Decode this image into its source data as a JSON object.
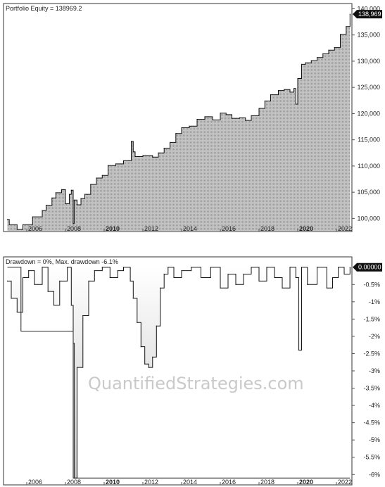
{
  "watermark": "QuantifiedStrategies.com",
  "colors": {
    "area_fill": "#b4b4b4",
    "line": "#111111",
    "badge_bg": "#111111",
    "badge_text": "#ffffff",
    "drawdown_gradient_top": "#ffffff",
    "drawdown_gradient_bottom": "#c8c8c8"
  },
  "chart_data": [
    {
      "type": "area",
      "title": "Portfolio Equity = 138969.2",
      "badge_value": "138,969",
      "xlim": [
        2004.8,
        2022.8
      ],
      "ylim": [
        97500,
        141000
      ],
      "x_ticks": [
        "2006",
        "2008",
        "2010",
        "2012",
        "2014",
        "2016",
        "2018",
        "2020",
        "2022"
      ],
      "x_ticks_bold": [
        "2010",
        "2020"
      ],
      "y_ticks": [
        "100,000",
        "105,000",
        "110,000",
        "115,000",
        "120,000",
        "125,000",
        "130,000",
        "135,000",
        "140,000"
      ],
      "grid": false,
      "series": [
        {
          "x": [
            2005.0,
            2005.1,
            2005.5,
            2005.8,
            2006.3,
            2006.8,
            2007.0,
            2007.3,
            2007.5,
            2007.8,
            2008.0,
            2008.2,
            2008.3,
            2008.4,
            2008.45,
            2008.6,
            2008.8,
            2009.0,
            2009.3,
            2009.6,
            2009.9,
            2010.2,
            2010.6,
            2011.0,
            2011.3,
            2011.4,
            2011.5,
            2011.6,
            2012.0,
            2012.5,
            2012.8,
            2013.1,
            2013.4,
            2013.7,
            2014.0,
            2014.4,
            2014.8,
            2015.2,
            2015.6,
            2016.0,
            2016.3,
            2016.6,
            2017.0,
            2017.3,
            2017.6,
            2018.0,
            2018.3,
            2018.6,
            2019.0,
            2019.3,
            2019.6,
            2019.8,
            2019.9,
            2020.0,
            2020.2,
            2020.4,
            2020.7,
            2021.0,
            2021.3,
            2021.6,
            2021.9,
            2022.2,
            2022.5,
            2022.7
          ],
          "values": [
            99800,
            98800,
            97900,
            98800,
            100300,
            101500,
            102500,
            103900,
            104900,
            105500,
            102800,
            104600,
            105400,
            99000,
            103500,
            102600,
            103800,
            104600,
            106500,
            107700,
            108200,
            110100,
            110400,
            111000,
            111000,
            114700,
            112700,
            111800,
            112000,
            111700,
            112500,
            113400,
            114500,
            116200,
            117300,
            117600,
            118900,
            119400,
            118800,
            120100,
            119800,
            119100,
            119200,
            118700,
            119600,
            121000,
            122400,
            123600,
            124400,
            124600,
            124100,
            124800,
            121800,
            126700,
            129400,
            129700,
            130100,
            130700,
            131400,
            132100,
            132600,
            135100,
            136600,
            138969
          ]
        }
      ]
    },
    {
      "type": "area",
      "title": "Drawdown = 0%, Max. drawdown -6.1%",
      "badge_value": "0.00000",
      "xlim": [
        2004.8,
        2022.8
      ],
      "ylim": [
        -6.3,
        0.3
      ],
      "x_ticks": [
        "2006",
        "2008",
        "2010",
        "2012",
        "2014",
        "2016",
        "2018",
        "2020",
        "2022"
      ],
      "x_ticks_bold": [
        "2010",
        "2020"
      ],
      "y_ticks": [
        "-0.5%",
        "-1%",
        "-1.5%",
        "-2%",
        "-2.5%",
        "-3%",
        "-3.5%",
        "-4%",
        "-4.5%",
        "-5%",
        "-5.5%",
        "-6%"
      ],
      "grid": false,
      "series": [
        {
          "x": [
            2005.0,
            2005.2,
            2005.5,
            2005.8,
            2006.1,
            2006.4,
            2006.8,
            2007.1,
            2007.4,
            2007.7,
            2008.1,
            2008.3,
            2008.4,
            2008.45,
            2008.6,
            2008.9,
            2009.2,
            2009.5,
            2009.9,
            2010.3,
            2010.7,
            2011.0,
            2011.35,
            2011.5,
            2011.7,
            2011.9,
            2012.1,
            2012.3,
            2012.5,
            2012.7,
            2012.9,
            2013.1,
            2013.3,
            2013.6,
            2014.0,
            2014.5,
            2015.0,
            2015.5,
            2016.0,
            2016.4,
            2016.8,
            2017.2,
            2017.6,
            2018.0,
            2018.4,
            2018.8,
            2019.2,
            2019.6,
            2019.9,
            2020.05,
            2020.2,
            2020.5,
            2021.0,
            2021.5,
            2021.8,
            2022.1,
            2022.4,
            2022.7
          ],
          "values": [
            -0.4,
            -0.9,
            -1.3,
            -0.3,
            -0.1,
            -0.5,
            0.0,
            -0.7,
            -1.1,
            -0.4,
            0.0,
            -1.1,
            -2.2,
            -6.1,
            -2.9,
            -1.4,
            -0.4,
            -0.1,
            0.0,
            -0.3,
            -0.1,
            0.0,
            -0.4,
            -0.9,
            -1.6,
            -2.3,
            -2.8,
            -2.9,
            -2.6,
            -1.7,
            -0.6,
            -0.2,
            0.0,
            -0.3,
            -0.1,
            0.0,
            -0.3,
            0.0,
            -0.6,
            -0.2,
            -0.5,
            -0.2,
            0.0,
            -0.4,
            0.0,
            -0.3,
            -0.6,
            0.0,
            -0.3,
            -2.4,
            0.0,
            -0.5,
            0.0,
            -0.6,
            -0.3,
            0.0,
            -0.2,
            0.0
          ]
        },
        {
          "name": "max-drawdown",
          "x": [
            2005.0,
            2005.7,
            2005.7,
            2008.4,
            2008.4,
            2022.7
          ],
          "values": [
            0.0,
            0.0,
            -1.85,
            -1.85,
            -6.1,
            -6.1
          ]
        }
      ]
    }
  ]
}
